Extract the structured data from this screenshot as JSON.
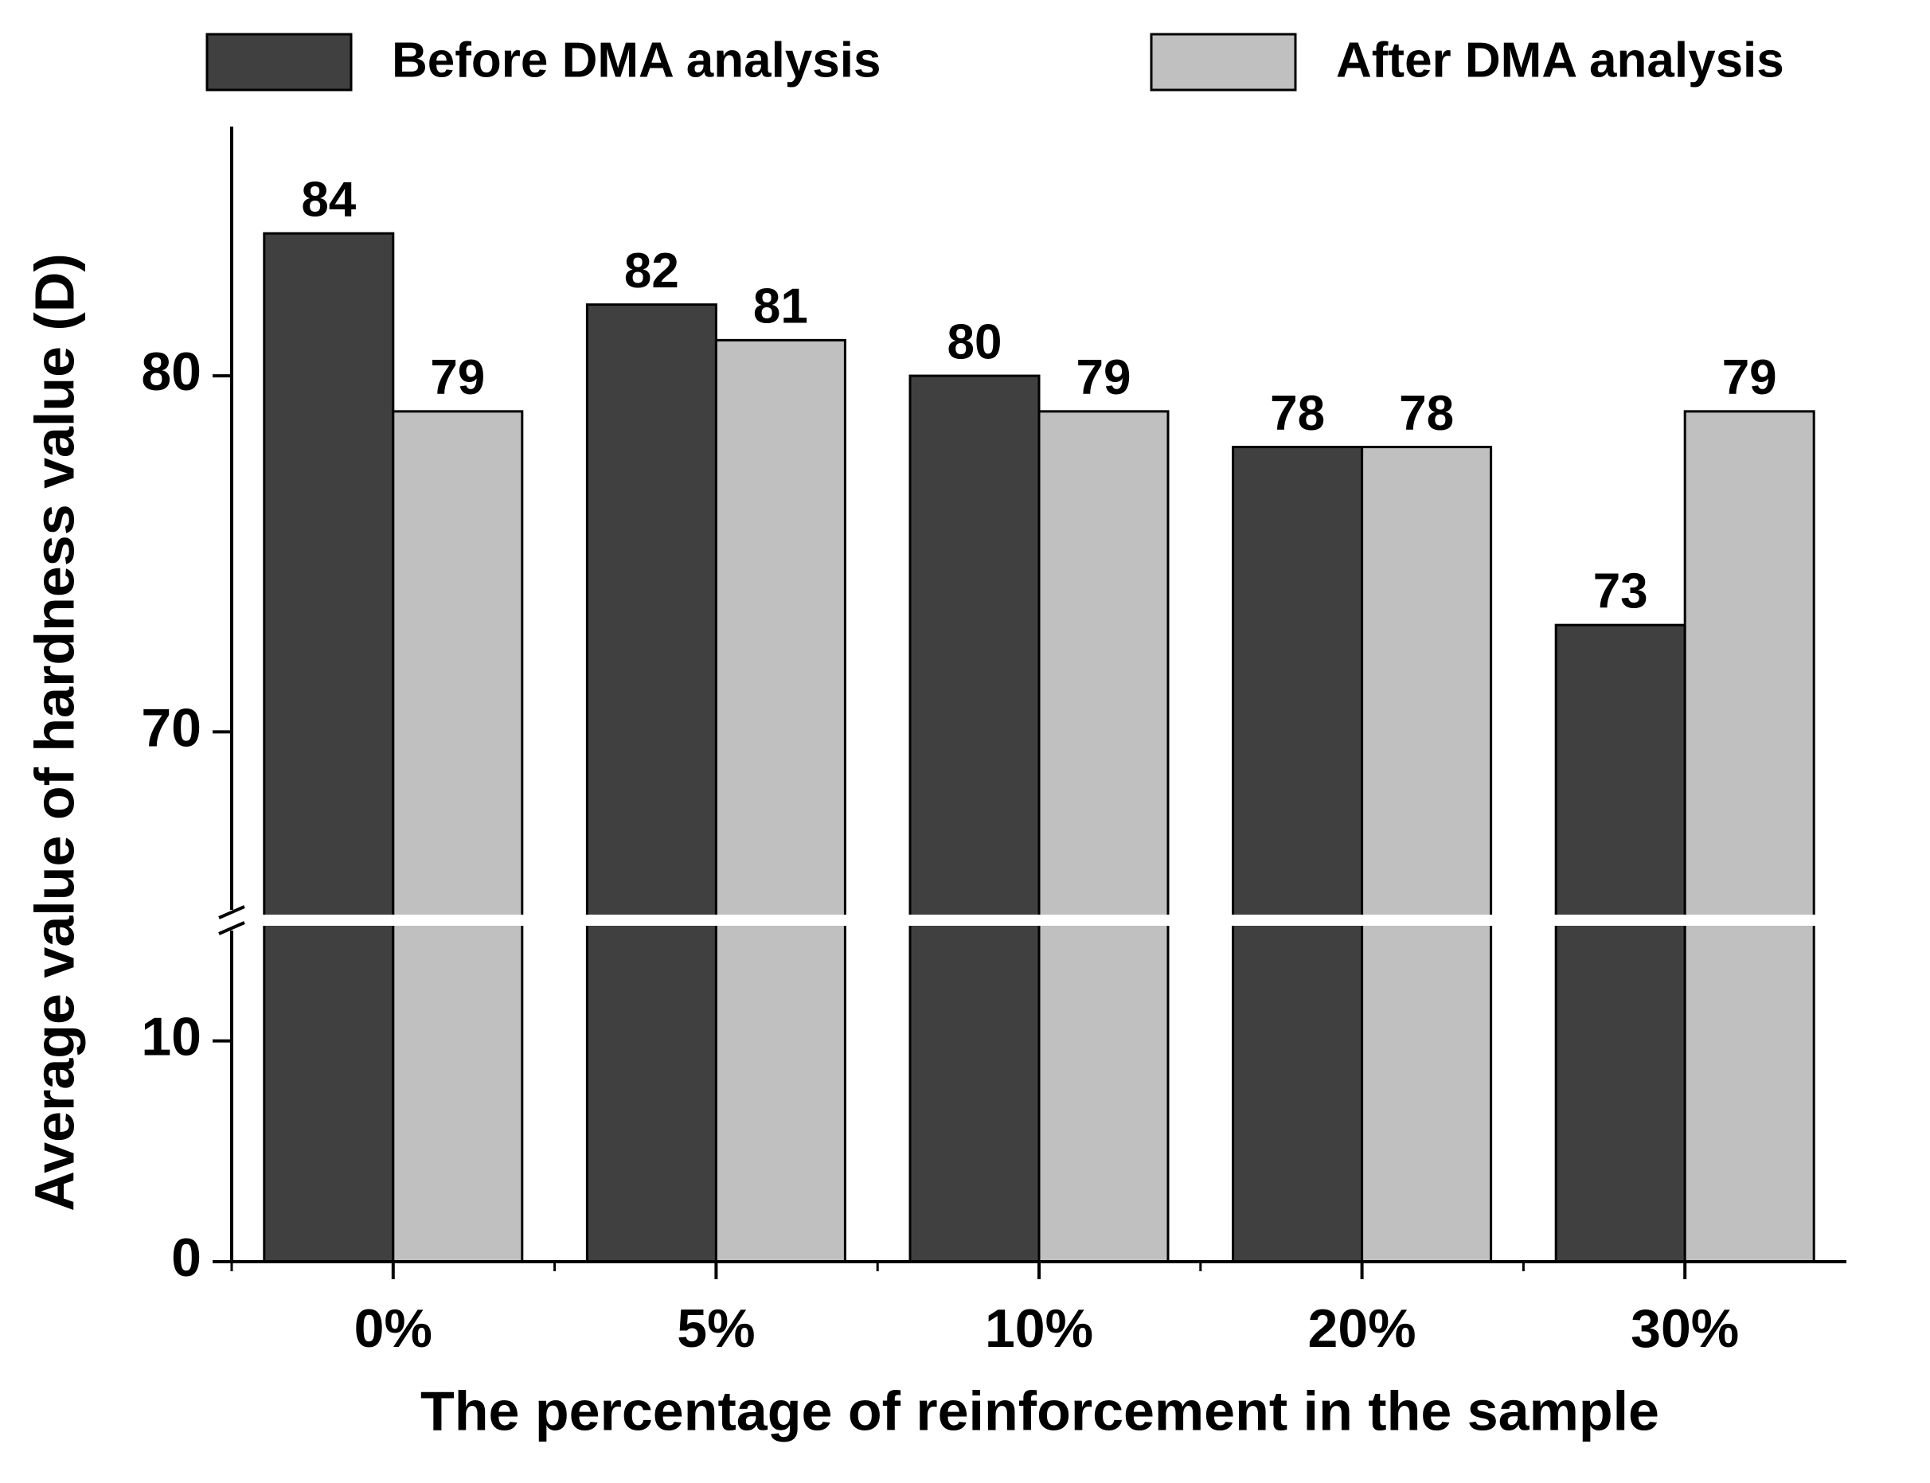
{
  "chart_data": {
    "type": "bar",
    "categories": [
      "0%",
      "5%",
      "10%",
      "20%",
      "30%"
    ],
    "series": [
      {
        "name": "Before DMA analysis",
        "color": "#404040",
        "values": [
          84,
          82,
          80,
          78,
          73
        ]
      },
      {
        "name": "After DMA analysis",
        "color": "#c0c0c0",
        "values": [
          79,
          81,
          79,
          78,
          79
        ]
      }
    ],
    "xlabel": "The percentage of reinforcement in the sample",
    "ylabel": "Average value of hardness value (D)",
    "ylim": [
      0,
      87
    ],
    "y_break": [
      15,
      65
    ],
    "yticks": [
      0,
      10,
      70,
      80
    ],
    "grid": false,
    "legend": "top"
  }
}
